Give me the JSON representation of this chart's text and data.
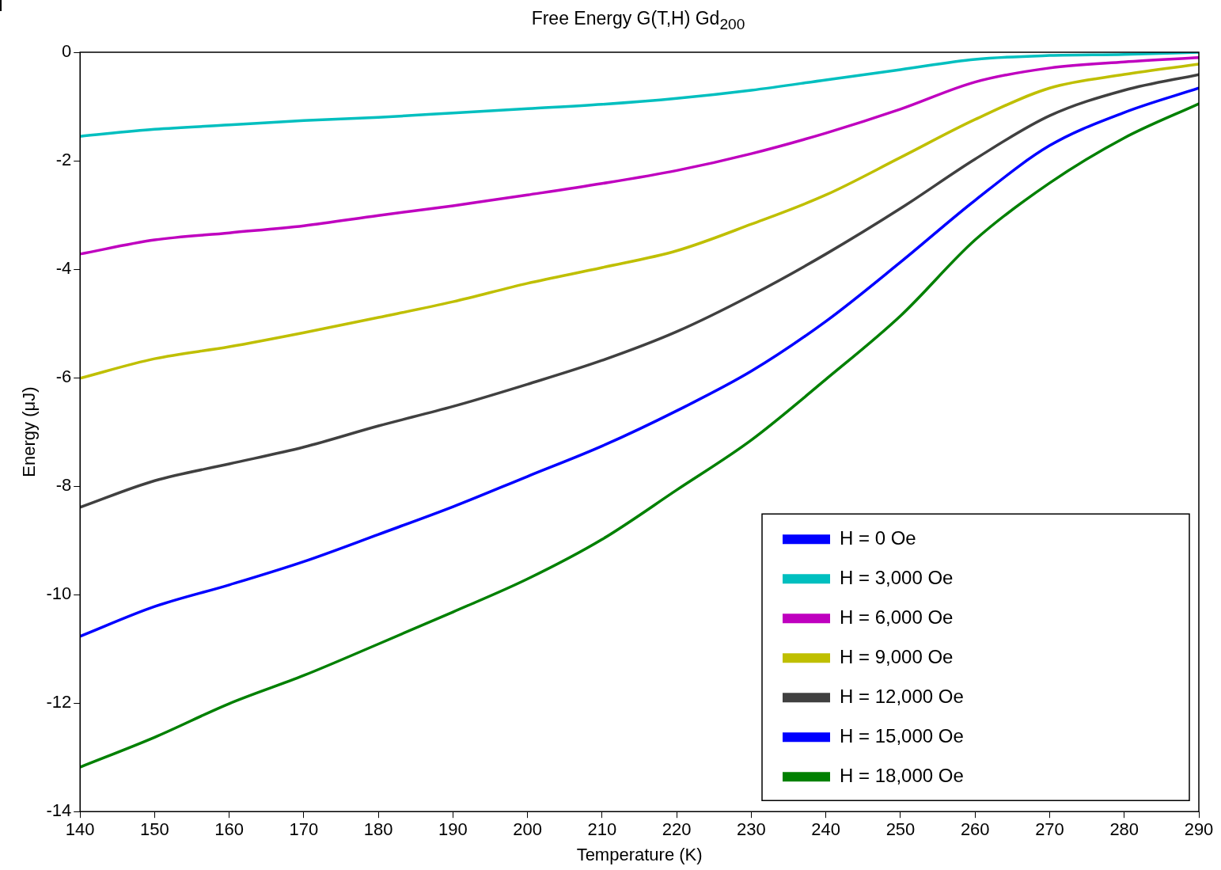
{
  "chart_data": {
    "type": "line",
    "title": "Free Energy G(T,H) Gd$_{200}$",
    "xlabel": "Temperature (K)",
    "ylabel": "Energy (μJ)",
    "x": [
      140,
      150,
      160,
      170,
      180,
      190,
      200,
      210,
      220,
      230,
      240,
      250,
      260,
      270,
      280,
      290
    ],
    "series": [
      {
        "name": "H = 0 Oe",
        "color": "#0000ff",
        "values": [
          null,
          null,
          null,
          null,
          null,
          null,
          null,
          null,
          null,
          null,
          null,
          null,
          null,
          null,
          null,
          null
        ]
      },
      {
        "name": "H = 3,000 Oe",
        "color": "#00bfbf",
        "values": [
          -1.55,
          -1.42,
          -1.34,
          -1.26,
          -1.2,
          -1.12,
          -1.04,
          -0.96,
          -0.85,
          -0.7,
          -0.51,
          -0.32,
          -0.13,
          -0.06,
          -0.04,
          0
        ]
      },
      {
        "name": "H = 6,000 Oe",
        "color": "#bf00bf",
        "values": [
          -3.72,
          -3.46,
          -3.33,
          -3.2,
          -3.01,
          -2.83,
          -2.63,
          -2.42,
          -2.18,
          -1.87,
          -1.49,
          -1.05,
          -0.55,
          -0.29,
          -0.18,
          -0.1
        ]
      },
      {
        "name": "H = 9,000 Oe",
        "color": "#bfbf00",
        "values": [
          -6.01,
          -5.65,
          -5.43,
          -5.17,
          -4.89,
          -4.6,
          -4.26,
          -3.97,
          -3.66,
          -3.17,
          -2.63,
          -1.94,
          -1.24,
          -0.66,
          -0.41,
          -0.22
        ]
      },
      {
        "name": "H = 12,000 Oe",
        "color": "#404040",
        "values": [
          -8.39,
          -7.9,
          -7.59,
          -7.28,
          -6.89,
          -6.53,
          -6.12,
          -5.68,
          -5.15,
          -4.48,
          -3.72,
          -2.88,
          -1.97,
          -1.17,
          -0.7,
          -0.41
        ]
      },
      {
        "name": "H = 15,000 Oe",
        "color": "#0000ff",
        "values": [
          -10.77,
          -10.22,
          -9.82,
          -9.39,
          -8.89,
          -8.38,
          -7.82,
          -7.26,
          -6.61,
          -5.88,
          -4.96,
          -3.87,
          -2.73,
          -1.72,
          -1.11,
          -0.66
        ]
      },
      {
        "name": "H = 18,000 Oe",
        "color": "#008000",
        "values": [
          -13.18,
          -12.63,
          -12.01,
          -11.49,
          -10.91,
          -10.32,
          -9.71,
          -8.98,
          -8.07,
          -7.15,
          -6.03,
          -4.86,
          -3.46,
          -2.41,
          -1.58,
          -0.95
        ]
      }
    ],
    "xlim": [
      140,
      290
    ],
    "xticks": [
      140,
      150,
      160,
      170,
      180,
      190,
      200,
      210,
      220,
      230,
      240,
      250,
      260,
      270,
      280,
      290
    ],
    "ylim": [
      -14,
      0
    ],
    "yticks": [
      -14,
      -12,
      -10,
      -8,
      -6,
      -4,
      -2,
      0
    ],
    "grid": false,
    "legend": "bottom right",
    "marker": "none",
    "line_style": "solid"
  }
}
